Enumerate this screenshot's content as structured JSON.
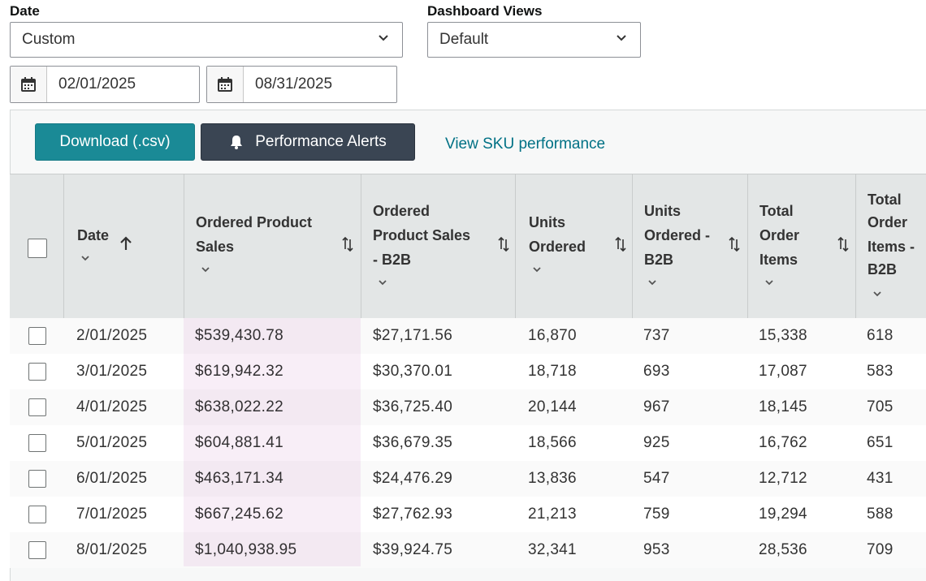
{
  "filters": {
    "date_label": "Date",
    "date_select": "Custom",
    "views_label": "Dashboard Views",
    "views_select": "Default",
    "start_date": "02/01/2025",
    "end_date": "08/31/2025"
  },
  "toolbar": {
    "download_label": "Download (.csv)",
    "alerts_label": "Performance Alerts",
    "sku_link": "View SKU performance"
  },
  "table": {
    "headers": {
      "date": "Date",
      "ops": [
        "Ordered Product",
        "Sales"
      ],
      "ops_b2b": [
        "Ordered",
        "Product Sales",
        "- B2B"
      ],
      "units": [
        "Units",
        "Ordered"
      ],
      "units_b2b": [
        "Units",
        "Ordered -",
        "B2B"
      ],
      "toi": [
        "Total",
        "Order",
        "Items"
      ],
      "toi_b2b": [
        "Total",
        "Order",
        "Items -",
        "B2B"
      ]
    },
    "rows": [
      {
        "date": "2/01/2025",
        "ops": "$539,430.78",
        "ops_b2b": "$27,171.56",
        "units": "16,870",
        "units_b2b": "737",
        "toi": "15,338",
        "toi_b2b": "618"
      },
      {
        "date": "3/01/2025",
        "ops": "$619,942.32",
        "ops_b2b": "$30,370.01",
        "units": "18,718",
        "units_b2b": "693",
        "toi": "17,087",
        "toi_b2b": "583"
      },
      {
        "date": "4/01/2025",
        "ops": "$638,022.22",
        "ops_b2b": "$36,725.40",
        "units": "20,144",
        "units_b2b": "967",
        "toi": "18,145",
        "toi_b2b": "705"
      },
      {
        "date": "5/01/2025",
        "ops": "$604,881.41",
        "ops_b2b": "$36,679.35",
        "units": "18,566",
        "units_b2b": "925",
        "toi": "16,762",
        "toi_b2b": "651"
      },
      {
        "date": "6/01/2025",
        "ops": "$463,171.34",
        "ops_b2b": "$24,476.29",
        "units": "13,836",
        "units_b2b": "547",
        "toi": "12,712",
        "toi_b2b": "431"
      },
      {
        "date": "7/01/2025",
        "ops": "$667,245.62",
        "ops_b2b": "$27,762.93",
        "units": "21,213",
        "units_b2b": "759",
        "toi": "19,294",
        "toi_b2b": "588"
      },
      {
        "date": "8/01/2025",
        "ops": "$1,040,938.95",
        "ops_b2b": "$39,924.75",
        "units": "32,341",
        "units_b2b": "953",
        "toi": "28,536",
        "toi_b2b": "709"
      }
    ]
  },
  "colors": {
    "accent_teal": "#1a8a96",
    "dark_button": "#3a4553",
    "link": "#007185",
    "highlight_column": "#f8eef7"
  },
  "icons": [
    "calendar-icon",
    "chevron-down-icon",
    "bell-icon",
    "sort-icon",
    "arrow-up-icon"
  ]
}
